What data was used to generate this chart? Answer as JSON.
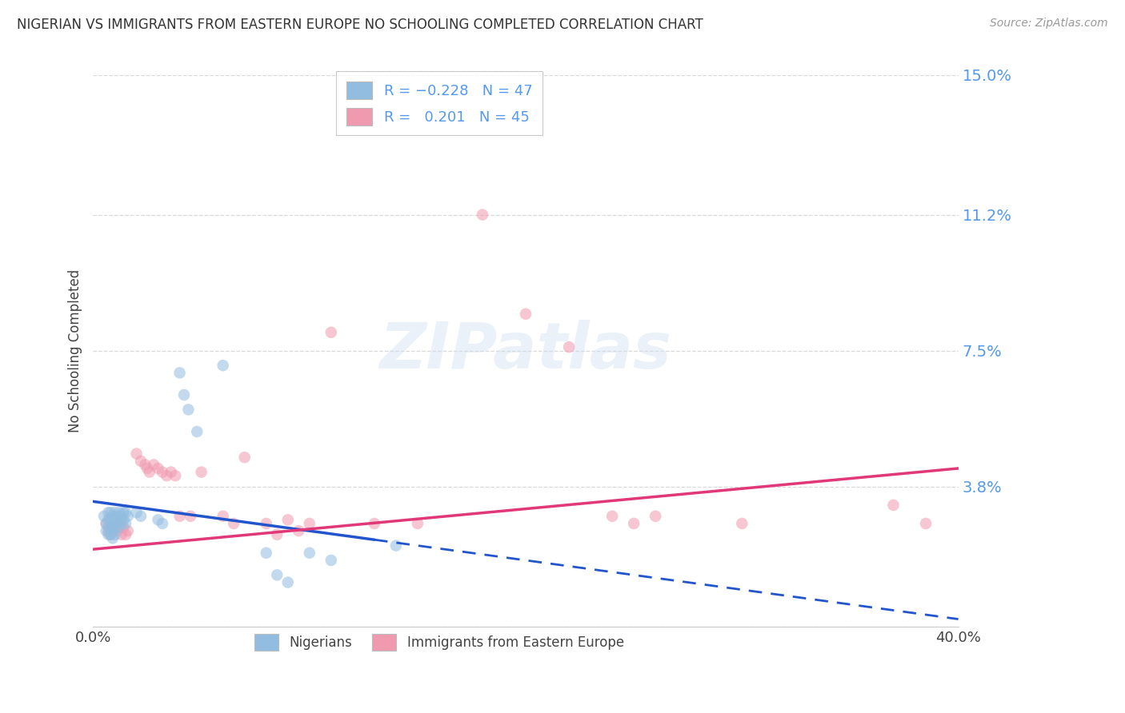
{
  "title": "NIGERIAN VS IMMIGRANTS FROM EASTERN EUROPE NO SCHOOLING COMPLETED CORRELATION CHART",
  "source": "Source: ZipAtlas.com",
  "ylabel": "No Schooling Completed",
  "xlim": [
    0.0,
    0.4
  ],
  "ylim": [
    0.0,
    0.15
  ],
  "ytick_vals": [
    0.0,
    0.038,
    0.075,
    0.112,
    0.15
  ],
  "ytick_labels": [
    "",
    "3.8%",
    "7.5%",
    "11.2%",
    "15.0%"
  ],
  "xtick_vals": [
    0.0,
    0.1,
    0.2,
    0.3,
    0.4
  ],
  "xtick_labels": [
    "0.0%",
    "",
    "",
    "",
    "40.0%"
  ],
  "blue_scatter": [
    [
      0.005,
      0.03
    ],
    [
      0.006,
      0.028
    ],
    [
      0.006,
      0.026
    ],
    [
      0.007,
      0.031
    ],
    [
      0.007,
      0.029
    ],
    [
      0.007,
      0.027
    ],
    [
      0.007,
      0.025
    ],
    [
      0.008,
      0.031
    ],
    [
      0.008,
      0.029
    ],
    [
      0.008,
      0.027
    ],
    [
      0.008,
      0.025
    ],
    [
      0.009,
      0.03
    ],
    [
      0.009,
      0.028
    ],
    [
      0.009,
      0.026
    ],
    [
      0.009,
      0.024
    ],
    [
      0.01,
      0.031
    ],
    [
      0.01,
      0.029
    ],
    [
      0.01,
      0.027
    ],
    [
      0.01,
      0.025
    ],
    [
      0.011,
      0.03
    ],
    [
      0.011,
      0.028
    ],
    [
      0.012,
      0.031
    ],
    [
      0.012,
      0.029
    ],
    [
      0.012,
      0.027
    ],
    [
      0.013,
      0.03
    ],
    [
      0.013,
      0.028
    ],
    [
      0.014,
      0.031
    ],
    [
      0.014,
      0.029
    ],
    [
      0.015,
      0.031
    ],
    [
      0.015,
      0.028
    ],
    [
      0.016,
      0.03
    ],
    [
      0.02,
      0.031
    ],
    [
      0.022,
      0.03
    ],
    [
      0.03,
      0.029
    ],
    [
      0.032,
      0.028
    ],
    [
      0.04,
      0.069
    ],
    [
      0.042,
      0.063
    ],
    [
      0.044,
      0.059
    ],
    [
      0.048,
      0.053
    ],
    [
      0.06,
      0.071
    ],
    [
      0.08,
      0.02
    ],
    [
      0.085,
      0.014
    ],
    [
      0.09,
      0.012
    ],
    [
      0.1,
      0.02
    ],
    [
      0.11,
      0.018
    ],
    [
      0.14,
      0.022
    ]
  ],
  "pink_scatter": [
    [
      0.006,
      0.028
    ],
    [
      0.007,
      0.026
    ],
    [
      0.008,
      0.025
    ],
    [
      0.009,
      0.027
    ],
    [
      0.01,
      0.029
    ],
    [
      0.011,
      0.026
    ],
    [
      0.012,
      0.028
    ],
    [
      0.013,
      0.025
    ],
    [
      0.014,
      0.027
    ],
    [
      0.015,
      0.025
    ],
    [
      0.016,
      0.026
    ],
    [
      0.02,
      0.047
    ],
    [
      0.022,
      0.045
    ],
    [
      0.024,
      0.044
    ],
    [
      0.025,
      0.043
    ],
    [
      0.026,
      0.042
    ],
    [
      0.028,
      0.044
    ],
    [
      0.03,
      0.043
    ],
    [
      0.032,
      0.042
    ],
    [
      0.034,
      0.041
    ],
    [
      0.036,
      0.042
    ],
    [
      0.038,
      0.041
    ],
    [
      0.04,
      0.03
    ],
    [
      0.045,
      0.03
    ],
    [
      0.05,
      0.042
    ],
    [
      0.06,
      0.03
    ],
    [
      0.065,
      0.028
    ],
    [
      0.07,
      0.046
    ],
    [
      0.08,
      0.028
    ],
    [
      0.085,
      0.025
    ],
    [
      0.09,
      0.029
    ],
    [
      0.095,
      0.026
    ],
    [
      0.1,
      0.028
    ],
    [
      0.11,
      0.08
    ],
    [
      0.13,
      0.028
    ],
    [
      0.15,
      0.028
    ],
    [
      0.18,
      0.112
    ],
    [
      0.2,
      0.085
    ],
    [
      0.22,
      0.076
    ],
    [
      0.24,
      0.03
    ],
    [
      0.25,
      0.028
    ],
    [
      0.26,
      0.03
    ],
    [
      0.3,
      0.028
    ],
    [
      0.37,
      0.033
    ],
    [
      0.385,
      0.028
    ]
  ],
  "blue_line": {
    "x0": 0.0,
    "y0": 0.034,
    "x1": 0.4,
    "y1": 0.002,
    "solid_end": 0.13
  },
  "pink_line": {
    "x0": 0.0,
    "y0": 0.021,
    "x1": 0.4,
    "y1": 0.043
  },
  "background_color": "#ffffff",
  "grid_color": "#d0d0d0",
  "dot_size": 110,
  "dot_alpha": 0.55,
  "blue_color": "#92bde0",
  "pink_color": "#f09ab0",
  "blue_line_color": "#2255cc",
  "pink_line_color": "#e03878",
  "right_axis_color": "#5599ee",
  "watermark": "ZIPatlas"
}
